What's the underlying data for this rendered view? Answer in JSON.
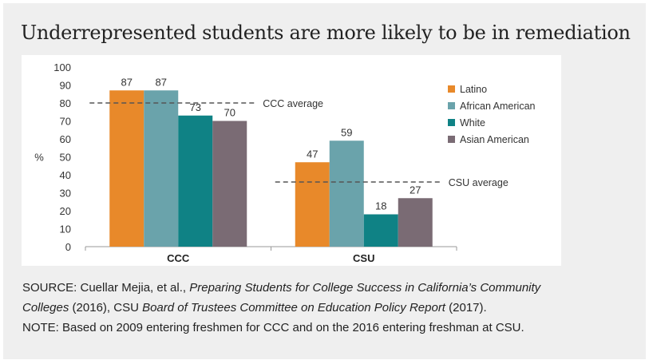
{
  "title": "Underrepresented students are more likely to be in remediation",
  "chart_data": {
    "type": "bar",
    "categories": [
      "CCC",
      "CSU"
    ],
    "ylabel": "%",
    "ylim": [
      0,
      100
    ],
    "yticks": [
      0,
      10,
      20,
      30,
      40,
      50,
      60,
      70,
      80,
      90,
      100
    ],
    "grid": false,
    "legend_position": "right",
    "series": [
      {
        "name": "Latino",
        "color": "#E8892A",
        "values": [
          87,
          47
        ]
      },
      {
        "name": "African American",
        "color": "#6AA3AB",
        "values": [
          87,
          59
        ]
      },
      {
        "name": "White",
        "color": "#0F8285",
        "values": [
          73,
          18
        ]
      },
      {
        "name": "Asian American",
        "color": "#7A6B74",
        "values": [
          70,
          27
        ]
      }
    ],
    "reference_lines": [
      {
        "label": "CCC average",
        "value": 80,
        "category": "CCC"
      },
      {
        "label": "CSU average",
        "value": 36,
        "category": "CSU"
      }
    ]
  },
  "source": {
    "prefix": "SOURCE: Cuellar Mejia, et al., ",
    "work1": "Preparing Students for College Success in California’s Community",
    "work1_cont": "Colleges",
    "mid": " (2016), CSU ",
    "work2": "Board of Trustees Committee on Education Policy Report",
    "end": " (2017).",
    "note": "NOTE: Based on 2009 entering freshmen for CCC and on the 2016 entering freshman at CSU."
  }
}
